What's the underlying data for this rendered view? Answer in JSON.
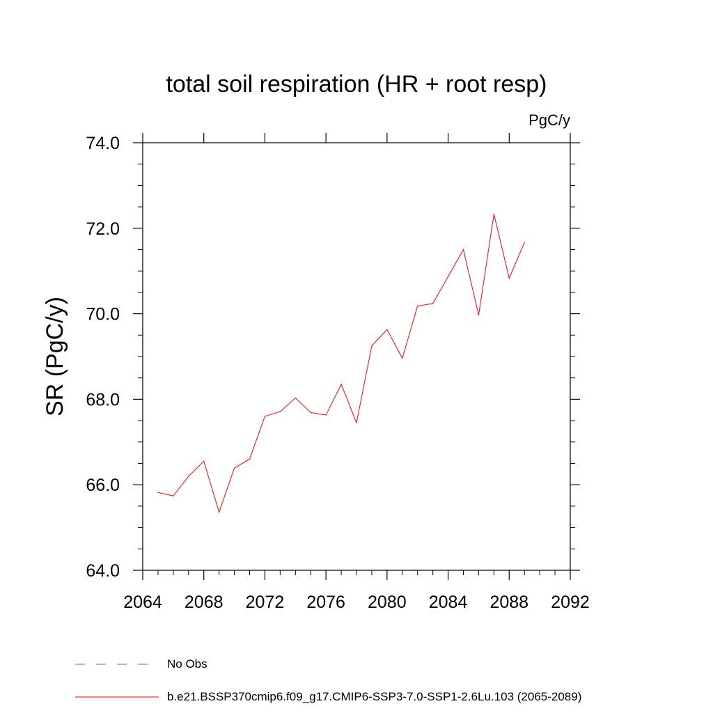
{
  "chart_data": {
    "type": "line",
    "title": "total soil respiration (HR + root resp)",
    "units_label": "PgC/y",
    "xlabel": "",
    "ylabel": "SR  (PgC/y)",
    "xlim": [
      2064,
      2092
    ],
    "ylim": [
      64.0,
      74.0
    ],
    "x_ticks": [
      "2064",
      "2068",
      "2072",
      "2076",
      "2080",
      "2084",
      "2088",
      "2092"
    ],
    "y_ticks": [
      "64.0",
      "66.0",
      "68.0",
      "70.0",
      "72.0",
      "74.0"
    ],
    "grid": false,
    "series": [
      {
        "name": "b.e21.BSSP370cmip6.f09_g17.CMIP6-SSP3-7.0-SSP1-2.6Lu.103 (2065-2089)",
        "color": "#ff0000",
        "x": [
          2065,
          2066,
          2067,
          2068,
          2069,
          2070,
          2071,
          2072,
          2073,
          2074,
          2075,
          2076,
          2077,
          2078,
          2079,
          2080,
          2081,
          2082,
          2083,
          2084,
          2085,
          2086,
          2087,
          2088,
          2089
        ],
        "y": [
          65.82,
          65.74,
          66.2,
          66.55,
          65.36,
          66.39,
          66.6,
          67.6,
          67.71,
          68.03,
          67.69,
          67.63,
          68.35,
          67.45,
          69.25,
          69.63,
          68.96,
          70.18,
          70.24,
          70.87,
          71.5,
          69.97,
          72.33,
          70.83,
          71.67
        ]
      }
    ],
    "legend": [
      {
        "label": "No Obs",
        "color": "#6b5fb5",
        "style": "dashed"
      },
      {
        "label": "b.e21.BSSP370cmip6.f09_g17.CMIP6-SSP3-7.0-SSP1-2.6Lu.103 (2065-2089)",
        "color": "#ff0000",
        "style": "solid"
      }
    ]
  }
}
